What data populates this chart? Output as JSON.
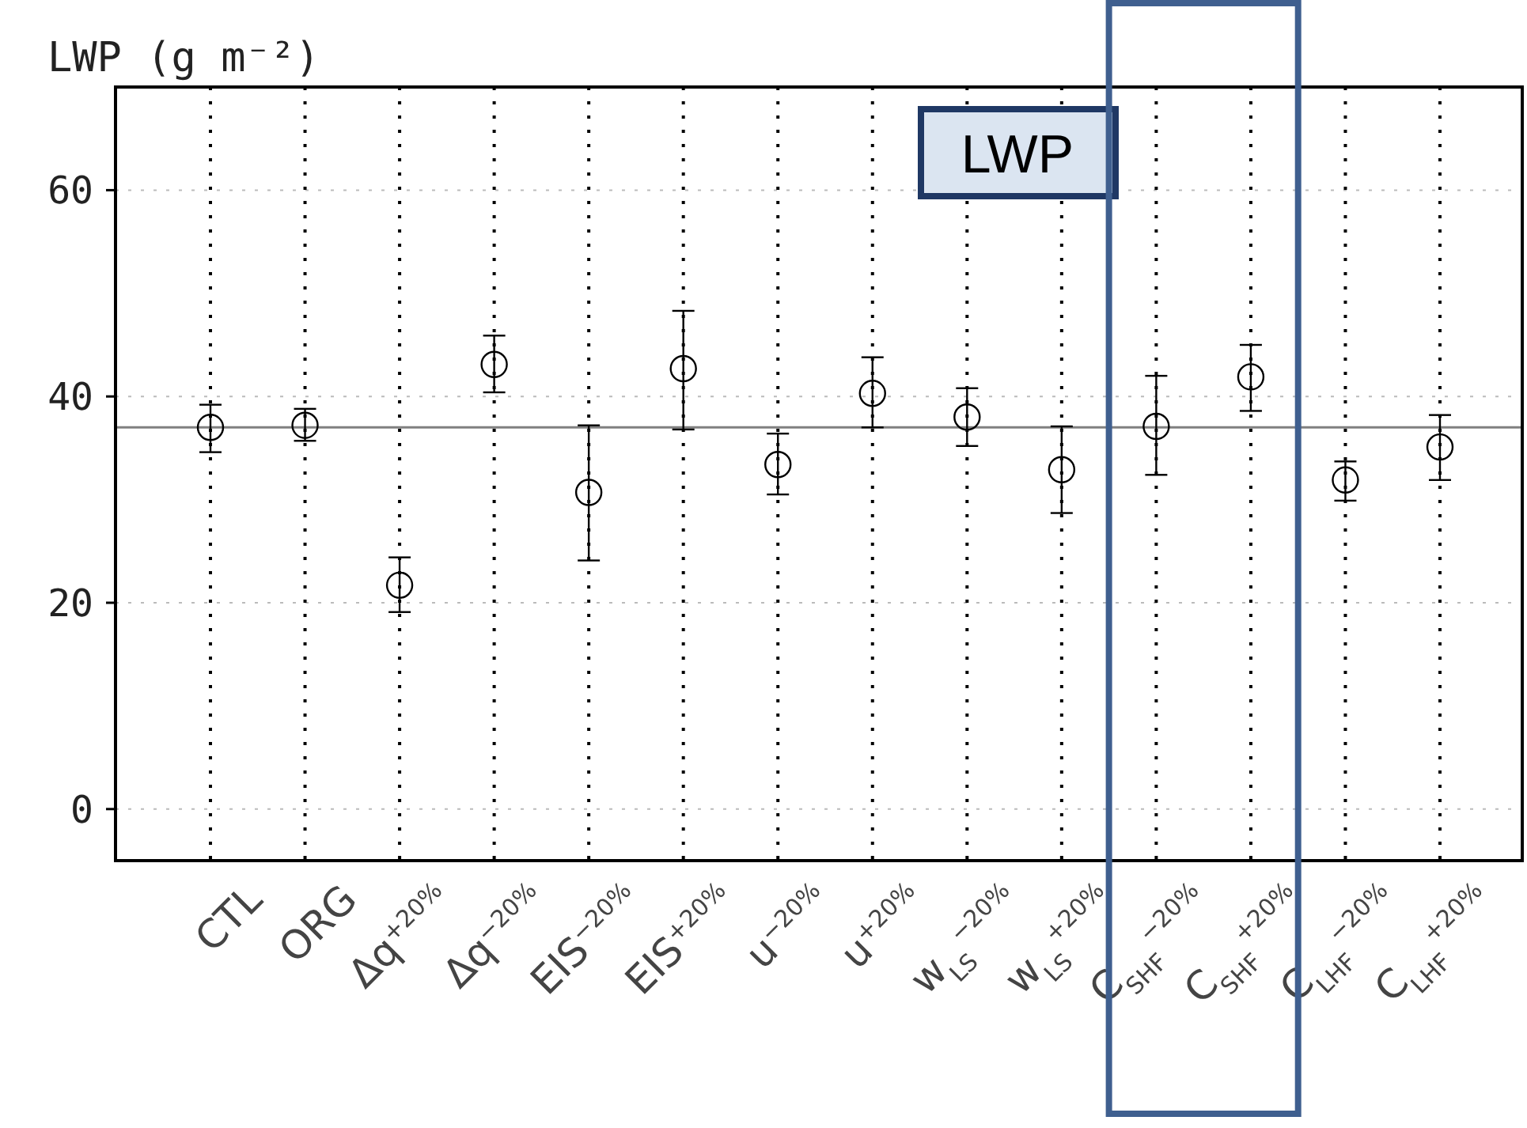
{
  "chart_data": {
    "type": "scatter",
    "ylabel": "LWP (g m⁻²)",
    "categories": [
      "CTL",
      "ORG",
      "Δq$^{+20%}$",
      "Δq$^{−20%}$",
      "EIS$^{−20%}$",
      "EIS$^{+20%}$",
      "u$^{−20%}$",
      "u$^{+20%}$",
      "w$_{LS}$$^{−20%}$",
      "w$_{LS}$$^{+20%}$",
      "C$_{SHF}$$^{−20%}$",
      "C$_{SHF}$$^{+20%}$",
      "C$_{LHF}$$^{−20%}$",
      "C$_{LHF}$$^{+20%}$"
    ],
    "values": [
      37,
      37.2,
      21.7,
      43.1,
      30.7,
      42.7,
      33.4,
      40.3,
      38,
      32.9,
      37.1,
      41.9,
      31.9,
      35.1
    ],
    "errors": [
      [
        34.6,
        39.2
      ],
      [
        35.7,
        38.8
      ],
      [
        19.1,
        24.4
      ],
      [
        40.4,
        45.9
      ],
      [
        24.1,
        37.2
      ],
      [
        36.8,
        48.3
      ],
      [
        30.5,
        36.4
      ],
      [
        37,
        43.8
      ],
      [
        35.2,
        40.8
      ],
      [
        28.7,
        37.1
      ],
      [
        32.4,
        42
      ],
      [
        38.6,
        45
      ],
      [
        29.9,
        33.7
      ],
      [
        31.9,
        38.2
      ]
    ],
    "color": "#000000",
    "marker": "circle",
    "ylim": [
      -5,
      70
    ],
    "yticks": [
      0,
      20,
      40,
      60
    ],
    "grid": true,
    "ref_lines": [
      {
        "axis": "y",
        "value": 37,
        "color": "#808080"
      }
    ],
    "annotations": [
      "LWP"
    ]
  }
}
